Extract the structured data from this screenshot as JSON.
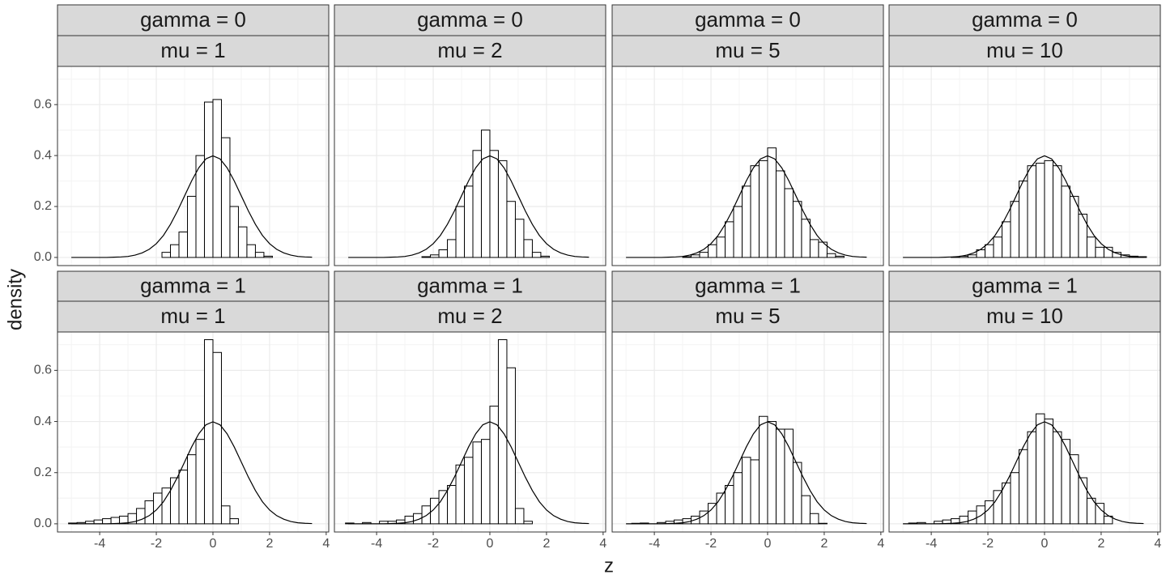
{
  "x_label": "z",
  "y_label": "density",
  "chart_data": [
    {
      "type": "histogram",
      "strips": [
        "gamma = 0",
        "mu = 1"
      ],
      "bins": [
        -5.1,
        -4.8,
        -4.5,
        -4.2,
        -3.9,
        -3.6,
        -3.3,
        -3,
        -2.7,
        -2.4,
        -2.1,
        -1.8,
        -1.5,
        -1.2,
        -0.9,
        -0.6,
        -0.3,
        0,
        0.3,
        0.6,
        0.9,
        1.2,
        1.5,
        1.8,
        2.1,
        2.4,
        2.7,
        3,
        3.3,
        3.6
      ],
      "values": [
        0,
        0,
        0,
        0,
        0,
        0,
        0,
        0,
        0,
        0,
        0,
        0.02,
        0.05,
        0.1,
        0.24,
        0.4,
        0.61,
        0.62,
        0.47,
        0.2,
        0.12,
        0.05,
        0.02,
        0.005,
        0,
        0,
        0,
        0,
        0
      ],
      "curve": {
        "x": [
          -5,
          -4.75,
          -4.5,
          -4.25,
          -4,
          -3.75,
          -3.5,
          -3.25,
          -3,
          -2.75,
          -2.5,
          -2.25,
          -2,
          -1.75,
          -1.5,
          -1.25,
          -1,
          -0.75,
          -0.5,
          -0.25,
          0,
          0.25,
          0.5,
          0.75,
          1,
          1.25,
          1.5,
          1.75,
          2,
          2.25,
          2.5,
          2.75,
          3,
          3.25,
          3.5
        ],
        "y": [
          0,
          0,
          0,
          0,
          0,
          0,
          0.001,
          0.002,
          0.004,
          0.009,
          0.018,
          0.032,
          0.054,
          0.086,
          0.13,
          0.183,
          0.242,
          0.301,
          0.352,
          0.387,
          0.399,
          0.387,
          0.352,
          0.301,
          0.242,
          0.183,
          0.13,
          0.086,
          0.054,
          0.032,
          0.018,
          0.009,
          0.004,
          0.002,
          0.001
        ]
      },
      "xlim": [
        -5.49,
        4.09
      ],
      "ylim": [
        -0.032,
        0.75
      ],
      "xticks": [
        -4,
        -2,
        0,
        2,
        4
      ],
      "yticks": [
        {
          "value": 0,
          "label": "0.0"
        },
        0.2,
        0.4,
        0.6
      ]
    },
    {
      "type": "histogram",
      "strips": [
        "gamma = 0",
        "mu = 2"
      ],
      "bins": [
        -5.1,
        -4.8,
        -4.5,
        -4.2,
        -3.9,
        -3.6,
        -3.3,
        -3,
        -2.7,
        -2.4,
        -2.1,
        -1.8,
        -1.5,
        -1.2,
        -0.9,
        -0.6,
        -0.3,
        0,
        0.3,
        0.6,
        0.9,
        1.2,
        1.5,
        1.8,
        2.1,
        2.4,
        2.7,
        3,
        3.3,
        3.6
      ],
      "values": [
        0,
        0,
        0,
        0,
        0,
        0,
        0,
        0,
        0,
        0.003,
        0.01,
        0.03,
        0.07,
        0.2,
        0.28,
        0.42,
        0.5,
        0.42,
        0.38,
        0.22,
        0.15,
        0.07,
        0.02,
        0.005,
        0,
        0,
        0,
        0,
        0
      ],
      "curve": {
        "x": [
          -5,
          -4.75,
          -4.5,
          -4.25,
          -4,
          -3.75,
          -3.5,
          -3.25,
          -3,
          -2.75,
          -2.5,
          -2.25,
          -2,
          -1.75,
          -1.5,
          -1.25,
          -1,
          -0.75,
          -0.5,
          -0.25,
          0,
          0.25,
          0.5,
          0.75,
          1,
          1.25,
          1.5,
          1.75,
          2,
          2.25,
          2.5,
          2.75,
          3,
          3.25,
          3.5
        ],
        "y": [
          0,
          0,
          0,
          0,
          0,
          0,
          0.001,
          0.002,
          0.004,
          0.009,
          0.018,
          0.032,
          0.054,
          0.086,
          0.13,
          0.183,
          0.242,
          0.301,
          0.352,
          0.387,
          0.399,
          0.387,
          0.352,
          0.301,
          0.242,
          0.183,
          0.13,
          0.086,
          0.054,
          0.032,
          0.018,
          0.009,
          0.004,
          0.002,
          0.001
        ]
      },
      "xlim": [
        -5.49,
        4.09
      ],
      "ylim": [
        -0.032,
        0.75
      ],
      "xticks": [
        -4,
        -2,
        0,
        2,
        4
      ],
      "yticks": [
        {
          "value": 0,
          "label": "0.0"
        },
        0.2,
        0.4,
        0.6
      ]
    },
    {
      "type": "histogram",
      "strips": [
        "gamma = 0",
        "mu = 5"
      ],
      "bins": [
        -5.1,
        -4.8,
        -4.5,
        -4.2,
        -3.9,
        -3.6,
        -3.3,
        -3,
        -2.7,
        -2.4,
        -2.1,
        -1.8,
        -1.5,
        -1.2,
        -0.9,
        -0.6,
        -0.3,
        0,
        0.3,
        0.6,
        0.9,
        1.2,
        1.5,
        1.8,
        2.1,
        2.4,
        2.7,
        3,
        3.3,
        3.6
      ],
      "values": [
        0,
        0,
        0,
        0,
        0,
        0,
        0,
        0.003,
        0.01,
        0.02,
        0.05,
        0.08,
        0.14,
        0.2,
        0.28,
        0.36,
        0.38,
        0.43,
        0.34,
        0.27,
        0.22,
        0.15,
        0.07,
        0.06,
        0.015,
        0.005,
        0,
        0,
        0
      ],
      "curve": {
        "x": [
          -5,
          -4.75,
          -4.5,
          -4.25,
          -4,
          -3.75,
          -3.5,
          -3.25,
          -3,
          -2.75,
          -2.5,
          -2.25,
          -2,
          -1.75,
          -1.5,
          -1.25,
          -1,
          -0.75,
          -0.5,
          -0.25,
          0,
          0.25,
          0.5,
          0.75,
          1,
          1.25,
          1.5,
          1.75,
          2,
          2.25,
          2.5,
          2.75,
          3,
          3.25,
          3.5
        ],
        "y": [
          0,
          0,
          0,
          0,
          0,
          0,
          0.001,
          0.002,
          0.004,
          0.009,
          0.018,
          0.032,
          0.054,
          0.086,
          0.13,
          0.183,
          0.242,
          0.301,
          0.352,
          0.387,
          0.399,
          0.387,
          0.352,
          0.301,
          0.242,
          0.183,
          0.13,
          0.086,
          0.054,
          0.032,
          0.018,
          0.009,
          0.004,
          0.002,
          0.001
        ]
      },
      "xlim": [
        -5.49,
        4.09
      ],
      "ylim": [
        -0.032,
        0.75
      ],
      "xticks": [
        -4,
        -2,
        0,
        2,
        4
      ],
      "yticks": [
        {
          "value": 0,
          "label": "0.0"
        },
        0.2,
        0.4,
        0.6
      ]
    },
    {
      "type": "histogram",
      "strips": [
        "gamma = 0",
        "mu = 10"
      ],
      "bins": [
        -5.1,
        -4.8,
        -4.5,
        -4.2,
        -3.9,
        -3.6,
        -3.3,
        -3,
        -2.7,
        -2.4,
        -2.1,
        -1.8,
        -1.5,
        -1.2,
        -0.9,
        -0.6,
        -0.3,
        0,
        0.3,
        0.6,
        0.9,
        1.2,
        1.5,
        1.8,
        2.1,
        2.4,
        2.7,
        3,
        3.3,
        3.6
      ],
      "values": [
        0,
        0,
        0,
        0,
        0,
        0,
        0.002,
        0.005,
        0.01,
        0.03,
        0.05,
        0.08,
        0.14,
        0.22,
        0.3,
        0.36,
        0.37,
        0.38,
        0.36,
        0.28,
        0.24,
        0.17,
        0.08,
        0.04,
        0.04,
        0.02,
        0.01,
        0.005,
        0.003
      ],
      "curve": {
        "x": [
          -5,
          -4.75,
          -4.5,
          -4.25,
          -4,
          -3.75,
          -3.5,
          -3.25,
          -3,
          -2.75,
          -2.5,
          -2.25,
          -2,
          -1.75,
          -1.5,
          -1.25,
          -1,
          -0.75,
          -0.5,
          -0.25,
          0,
          0.25,
          0.5,
          0.75,
          1,
          1.25,
          1.5,
          1.75,
          2,
          2.25,
          2.5,
          2.75,
          3,
          3.25,
          3.5
        ],
        "y": [
          0,
          0,
          0,
          0,
          0,
          0,
          0.001,
          0.002,
          0.004,
          0.009,
          0.018,
          0.032,
          0.054,
          0.086,
          0.13,
          0.183,
          0.242,
          0.301,
          0.352,
          0.387,
          0.399,
          0.387,
          0.352,
          0.301,
          0.242,
          0.183,
          0.13,
          0.086,
          0.054,
          0.032,
          0.018,
          0.009,
          0.004,
          0.002,
          0.001
        ]
      },
      "xlim": [
        -5.49,
        4.09
      ],
      "ylim": [
        -0.032,
        0.75
      ],
      "xticks": [
        -4,
        -2,
        0,
        2,
        4
      ],
      "yticks": [
        {
          "value": 0,
          "label": "0.0"
        },
        0.2,
        0.4,
        0.6
      ]
    },
    {
      "type": "histogram",
      "strips": [
        "gamma = 1",
        "mu = 1"
      ],
      "bins": [
        -5.1,
        -4.8,
        -4.5,
        -4.2,
        -3.9,
        -3.6,
        -3.3,
        -3,
        -2.7,
        -2.4,
        -2.1,
        -1.8,
        -1.5,
        -1.2,
        -0.9,
        -0.6,
        -0.3,
        0,
        0.3,
        0.6,
        0.9,
        1.2,
        1.5,
        1.8,
        2.1,
        2.4,
        2.7,
        3,
        3.3,
        3.6
      ],
      "values": [
        0.003,
        0.005,
        0.01,
        0.015,
        0.02,
        0.025,
        0.03,
        0.04,
        0.06,
        0.09,
        0.12,
        0.14,
        0.18,
        0.21,
        0.27,
        0.33,
        0.72,
        0.67,
        0.07,
        0.02,
        0,
        0,
        0,
        0,
        0,
        0,
        0,
        0,
        0
      ],
      "curve": {
        "x": [
          -5,
          -4.75,
          -4.5,
          -4.25,
          -4,
          -3.75,
          -3.5,
          -3.25,
          -3,
          -2.75,
          -2.5,
          -2.25,
          -2,
          -1.75,
          -1.5,
          -1.25,
          -1,
          -0.75,
          -0.5,
          -0.25,
          0,
          0.25,
          0.5,
          0.75,
          1,
          1.25,
          1.5,
          1.75,
          2,
          2.25,
          2.5,
          2.75,
          3,
          3.25,
          3.5
        ],
        "y": [
          0,
          0,
          0,
          0,
          0,
          0,
          0.001,
          0.002,
          0.004,
          0.009,
          0.018,
          0.032,
          0.054,
          0.086,
          0.13,
          0.183,
          0.242,
          0.301,
          0.352,
          0.387,
          0.399,
          0.387,
          0.352,
          0.301,
          0.242,
          0.183,
          0.13,
          0.086,
          0.054,
          0.032,
          0.018,
          0.009,
          0.004,
          0.002,
          0.001
        ]
      },
      "xlim": [
        -5.49,
        4.09
      ],
      "ylim": [
        -0.032,
        0.75
      ],
      "xticks": [
        -4,
        -2,
        0,
        2,
        4
      ],
      "yticks": [
        {
          "value": 0,
          "label": "0.0"
        },
        0.2,
        0.4,
        0.6
      ]
    },
    {
      "type": "histogram",
      "strips": [
        "gamma = 1",
        "mu = 2"
      ],
      "bins": [
        -5.1,
        -4.8,
        -4.5,
        -4.2,
        -3.9,
        -3.6,
        -3.3,
        -3,
        -2.7,
        -2.4,
        -2.1,
        -1.8,
        -1.5,
        -1.2,
        -0.9,
        -0.6,
        -0.3,
        0,
        0.3,
        0.6,
        0.9,
        1.2,
        1.5,
        1.8,
        2.1,
        2.4,
        2.7,
        3,
        3.3,
        3.6
      ],
      "values": [
        0.003,
        0,
        0.005,
        0,
        0.01,
        0.01,
        0.015,
        0.03,
        0.04,
        0.07,
        0.1,
        0.13,
        0.15,
        0.23,
        0.26,
        0.32,
        0.33,
        0.46,
        0.72,
        0.61,
        0.06,
        0.01,
        0,
        0,
        0,
        0,
        0,
        0,
        0
      ],
      "curve": {
        "x": [
          -5,
          -4.75,
          -4.5,
          -4.25,
          -4,
          -3.75,
          -3.5,
          -3.25,
          -3,
          -2.75,
          -2.5,
          -2.25,
          -2,
          -1.75,
          -1.5,
          -1.25,
          -1,
          -0.75,
          -0.5,
          -0.25,
          0,
          0.25,
          0.5,
          0.75,
          1,
          1.25,
          1.5,
          1.75,
          2,
          2.25,
          2.5,
          2.75,
          3,
          3.25,
          3.5
        ],
        "y": [
          0,
          0,
          0,
          0,
          0,
          0,
          0.001,
          0.002,
          0.004,
          0.009,
          0.018,
          0.032,
          0.054,
          0.086,
          0.13,
          0.183,
          0.242,
          0.301,
          0.352,
          0.387,
          0.399,
          0.387,
          0.352,
          0.301,
          0.242,
          0.183,
          0.13,
          0.086,
          0.054,
          0.032,
          0.018,
          0.009,
          0.004,
          0.002,
          0.001
        ]
      },
      "xlim": [
        -5.49,
        4.09
      ],
      "ylim": [
        -0.032,
        0.75
      ],
      "xticks": [
        -4,
        -2,
        0,
        2,
        4
      ],
      "yticks": [
        {
          "value": 0,
          "label": "0.0"
        },
        0.2,
        0.4,
        0.6
      ]
    },
    {
      "type": "histogram",
      "strips": [
        "gamma = 1",
        "mu = 5"
      ],
      "bins": [
        -5.1,
        -4.8,
        -4.5,
        -4.2,
        -3.9,
        -3.6,
        -3.3,
        -3,
        -2.7,
        -2.4,
        -2.1,
        -1.8,
        -1.5,
        -1.2,
        -0.9,
        -0.6,
        -0.3,
        0,
        0.3,
        0.6,
        0.9,
        1.2,
        1.5,
        1.8,
        2.1,
        2.4,
        2.7,
        3,
        3.3,
        3.6
      ],
      "values": [
        0,
        0.002,
        0.003,
        0,
        0.005,
        0.01,
        0.015,
        0.02,
        0.03,
        0.05,
        0.08,
        0.12,
        0.15,
        0.2,
        0.26,
        0.25,
        0.42,
        0.4,
        0.37,
        0.37,
        0.24,
        0.11,
        0.04,
        0.002,
        0,
        0,
        0,
        0,
        0
      ],
      "curve": {
        "x": [
          -5,
          -4.75,
          -4.5,
          -4.25,
          -4,
          -3.75,
          -3.5,
          -3.25,
          -3,
          -2.75,
          -2.5,
          -2.25,
          -2,
          -1.75,
          -1.5,
          -1.25,
          -1,
          -0.75,
          -0.5,
          -0.25,
          0,
          0.25,
          0.5,
          0.75,
          1,
          1.25,
          1.5,
          1.75,
          2,
          2.25,
          2.5,
          2.75,
          3,
          3.25,
          3.5
        ],
        "y": [
          0,
          0,
          0,
          0,
          0,
          0,
          0.001,
          0.002,
          0.004,
          0.009,
          0.018,
          0.032,
          0.054,
          0.086,
          0.13,
          0.183,
          0.242,
          0.301,
          0.352,
          0.387,
          0.399,
          0.387,
          0.352,
          0.301,
          0.242,
          0.183,
          0.13,
          0.086,
          0.054,
          0.032,
          0.018,
          0.009,
          0.004,
          0.002,
          0.001
        ]
      },
      "xlim": [
        -5.49,
        4.09
      ],
      "ylim": [
        -0.032,
        0.75
      ],
      "xticks": [
        -4,
        -2,
        0,
        2,
        4
      ],
      "yticks": [
        {
          "value": 0,
          "label": "0.0"
        },
        0.2,
        0.4,
        0.6
      ]
    },
    {
      "type": "histogram",
      "strips": [
        "gamma = 1",
        "mu = 10"
      ],
      "bins": [
        -5.1,
        -4.8,
        -4.5,
        -4.2,
        -3.9,
        -3.6,
        -3.3,
        -3,
        -2.7,
        -2.4,
        -2.1,
        -1.8,
        -1.5,
        -1.2,
        -0.9,
        -0.6,
        -0.3,
        0,
        0.3,
        0.6,
        0.9,
        1.2,
        1.5,
        1.8,
        2.1,
        2.4,
        2.7,
        3,
        3.3,
        3.6
      ],
      "values": [
        0,
        0.003,
        0.005,
        0,
        0.01,
        0.015,
        0.02,
        0.03,
        0.05,
        0.07,
        0.09,
        0.13,
        0.16,
        0.2,
        0.29,
        0.36,
        0.43,
        0.41,
        0.36,
        0.33,
        0.27,
        0.18,
        0.1,
        0.08,
        0.03,
        0,
        0,
        0,
        0
      ],
      "curve": {
        "x": [
          -5,
          -4.75,
          -4.5,
          -4.25,
          -4,
          -3.75,
          -3.5,
          -3.25,
          -3,
          -2.75,
          -2.5,
          -2.25,
          -2,
          -1.75,
          -1.5,
          -1.25,
          -1,
          -0.75,
          -0.5,
          -0.25,
          0,
          0.25,
          0.5,
          0.75,
          1,
          1.25,
          1.5,
          1.75,
          2,
          2.25,
          2.5,
          2.75,
          3,
          3.25,
          3.5
        ],
        "y": [
          0,
          0,
          0,
          0,
          0,
          0,
          0.001,
          0.002,
          0.004,
          0.009,
          0.018,
          0.032,
          0.054,
          0.086,
          0.13,
          0.183,
          0.242,
          0.301,
          0.352,
          0.387,
          0.399,
          0.387,
          0.352,
          0.301,
          0.242,
          0.183,
          0.13,
          0.086,
          0.054,
          0.032,
          0.018,
          0.009,
          0.004,
          0.002,
          0.001
        ]
      },
      "xlim": [
        -5.49,
        4.09
      ],
      "ylim": [
        -0.032,
        0.75
      ],
      "xticks": [
        -4,
        -2,
        0,
        2,
        4
      ],
      "yticks": [
        {
          "value": 0,
          "label": "0.0"
        },
        0.2,
        0.4,
        0.6
      ]
    }
  ]
}
